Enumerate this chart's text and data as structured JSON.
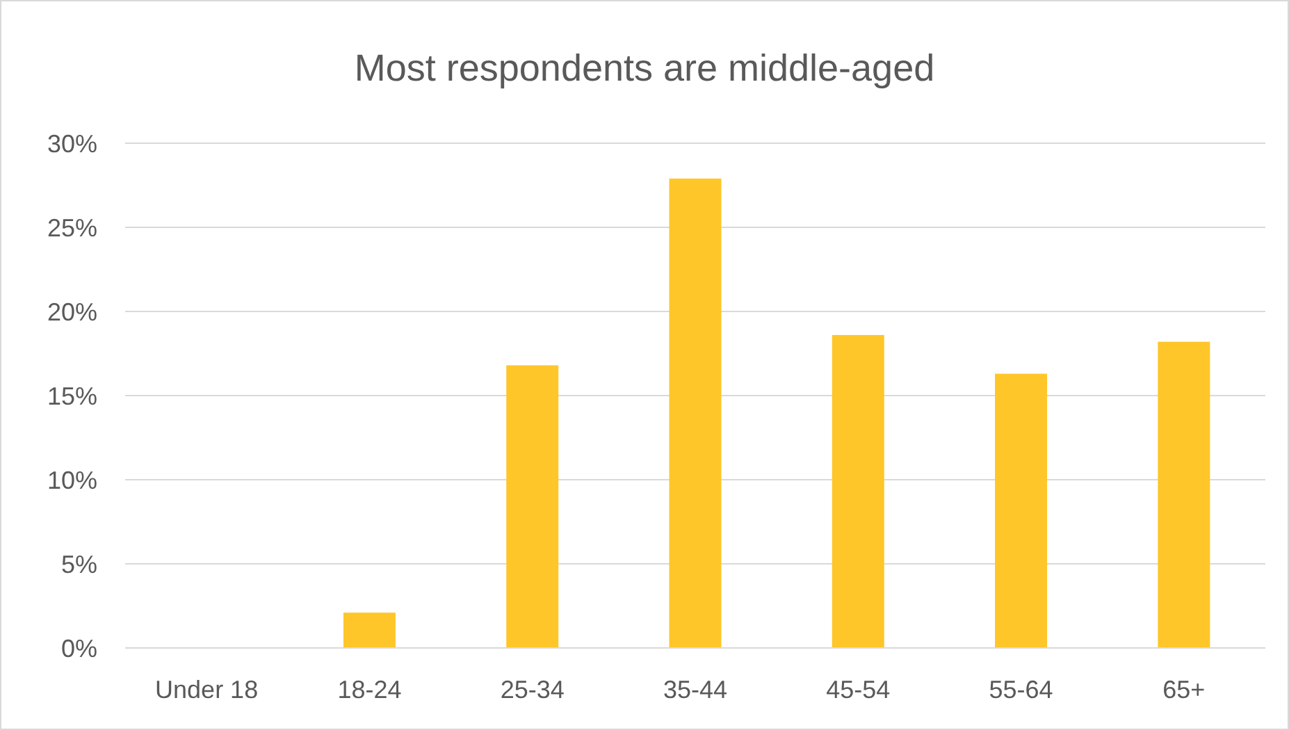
{
  "chart_data": {
    "type": "bar",
    "title": "Most respondents are middle-aged",
    "categories": [
      "Under 18",
      "18-24",
      "25-34",
      "35-44",
      "45-54",
      "55-64",
      "65+"
    ],
    "values": [
      0,
      2.1,
      16.8,
      27.9,
      18.6,
      16.3,
      18.2
    ],
    "color": "#ffc629",
    "ylim": [
      0,
      30
    ],
    "yticks": [
      {
        "value": 0,
        "label": "0%"
      },
      {
        "value": 5,
        "label": "5%"
      },
      {
        "value": 10,
        "label": "10%"
      },
      {
        "value": 15,
        "label": "15%"
      },
      {
        "value": 20,
        "label": "20%"
      },
      {
        "value": 25,
        "label": "25%"
      },
      {
        "value": 30,
        "label": "30%"
      }
    ],
    "grid": "y"
  }
}
